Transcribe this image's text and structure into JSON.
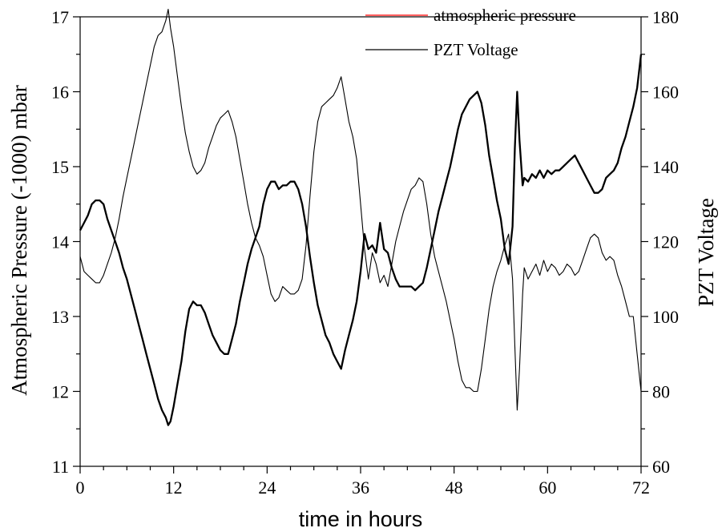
{
  "chart_data": {
    "type": "line",
    "xlabel": "time in hours",
    "ylabel_left": "Atmospheric Pressure (-1000) mbar",
    "ylabel_right": "PZT Voltage",
    "xlim": [
      0,
      72
    ],
    "ylim_left": [
      11,
      17
    ],
    "ylim_right": [
      60,
      180
    ],
    "x_ticks": [
      "0",
      "12",
      "24",
      "36",
      "48",
      "60",
      "72"
    ],
    "y_left_ticks": [
      "11",
      "12",
      "13",
      "14",
      "15",
      "16",
      "17"
    ],
    "y_right_ticks": [
      "60",
      "80",
      "100",
      "120",
      "140",
      "160",
      "180"
    ],
    "grid": false,
    "legend_position": "top-right",
    "series": [
      {
        "name": "atmospheric pressure",
        "axis": "left",
        "legend_color": "#ff0000",
        "line_color": "#000000",
        "line_width": "thin",
        "points": [
          [
            0,
            13.8
          ],
          [
            0.5,
            13.6
          ],
          [
            1,
            13.55
          ],
          [
            1.5,
            13.5
          ],
          [
            2,
            13.45
          ],
          [
            2.5,
            13.45
          ],
          [
            3,
            13.55
          ],
          [
            3.5,
            13.7
          ],
          [
            4,
            13.85
          ],
          [
            4.5,
            14.05
          ],
          [
            5,
            14.3
          ],
          [
            5.5,
            14.6
          ],
          [
            6,
            14.85
          ],
          [
            6.5,
            15.1
          ],
          [
            7,
            15.35
          ],
          [
            7.5,
            15.6
          ],
          [
            8,
            15.85
          ],
          [
            8.5,
            16.1
          ],
          [
            9,
            16.35
          ],
          [
            9.5,
            16.6
          ],
          [
            10,
            16.75
          ],
          [
            10.5,
            16.8
          ],
          [
            11,
            16.95
          ],
          [
            11.3,
            17.1
          ],
          [
            11.6,
            16.85
          ],
          [
            12,
            16.6
          ],
          [
            12.5,
            16.2
          ],
          [
            13,
            15.8
          ],
          [
            13.5,
            15.45
          ],
          [
            14,
            15.2
          ],
          [
            14.5,
            15.0
          ],
          [
            15,
            14.9
          ],
          [
            15.5,
            14.95
          ],
          [
            16,
            15.05
          ],
          [
            16.5,
            15.25
          ],
          [
            17,
            15.4
          ],
          [
            17.5,
            15.55
          ],
          [
            18,
            15.65
          ],
          [
            18.5,
            15.7
          ],
          [
            19,
            15.75
          ],
          [
            19.5,
            15.6
          ],
          [
            20,
            15.4
          ],
          [
            20.5,
            15.1
          ],
          [
            21,
            14.8
          ],
          [
            21.5,
            14.5
          ],
          [
            22,
            14.25
          ],
          [
            22.5,
            14.05
          ],
          [
            23,
            13.95
          ],
          [
            23.5,
            13.8
          ],
          [
            24,
            13.55
          ],
          [
            24.5,
            13.3
          ],
          [
            25,
            13.2
          ],
          [
            25.5,
            13.25
          ],
          [
            26,
            13.4
          ],
          [
            26.5,
            13.35
          ],
          [
            27,
            13.3
          ],
          [
            27.5,
            13.3
          ],
          [
            28,
            13.35
          ],
          [
            28.5,
            13.5
          ],
          [
            29,
            13.95
          ],
          [
            29.5,
            14.6
          ],
          [
            30,
            15.2
          ],
          [
            30.5,
            15.6
          ],
          [
            31,
            15.8
          ],
          [
            31.5,
            15.85
          ],
          [
            32,
            15.9
          ],
          [
            32.5,
            15.95
          ],
          [
            33,
            16.05
          ],
          [
            33.5,
            16.2
          ],
          [
            34,
            15.9
          ],
          [
            34.5,
            15.6
          ],
          [
            35,
            15.4
          ],
          [
            35.5,
            15.1
          ],
          [
            36,
            14.5
          ],
          [
            36.5,
            13.9
          ],
          [
            37,
            13.5
          ],
          [
            37.5,
            13.85
          ],
          [
            38,
            13.7
          ],
          [
            38.5,
            13.45
          ],
          [
            39,
            13.55
          ],
          [
            39.5,
            13.4
          ],
          [
            40,
            13.7
          ],
          [
            40.5,
            14.0
          ],
          [
            41,
            14.2
          ],
          [
            41.5,
            14.4
          ],
          [
            42,
            14.55
          ],
          [
            42.5,
            14.7
          ],
          [
            43,
            14.75
          ],
          [
            43.5,
            14.85
          ],
          [
            44,
            14.8
          ],
          [
            44.5,
            14.5
          ],
          [
            45,
            14.1
          ],
          [
            45.5,
            13.8
          ],
          [
            46,
            13.6
          ],
          [
            46.5,
            13.4
          ],
          [
            47,
            13.2
          ],
          [
            47.5,
            12.95
          ],
          [
            48,
            12.7
          ],
          [
            48.5,
            12.4
          ],
          [
            49,
            12.15
          ],
          [
            49.5,
            12.05
          ],
          [
            50,
            12.05
          ],
          [
            50.5,
            12.0
          ],
          [
            51,
            12.0
          ],
          [
            51.5,
            12.3
          ],
          [
            52,
            12.7
          ],
          [
            52.5,
            13.1
          ],
          [
            53,
            13.4
          ],
          [
            53.5,
            13.6
          ],
          [
            54,
            13.75
          ],
          [
            54.5,
            13.95
          ],
          [
            55,
            14.1
          ],
          [
            55.5,
            13.5
          ],
          [
            55.8,
            12.6
          ],
          [
            56.1,
            11.75
          ],
          [
            56.4,
            12.3
          ],
          [
            56.8,
            13.3
          ],
          [
            57,
            13.65
          ],
          [
            57.5,
            13.5
          ],
          [
            58,
            13.6
          ],
          [
            58.5,
            13.7
          ],
          [
            59,
            13.55
          ],
          [
            59.5,
            13.75
          ],
          [
            60,
            13.6
          ],
          [
            60.5,
            13.7
          ],
          [
            61,
            13.65
          ],
          [
            61.5,
            13.55
          ],
          [
            62,
            13.6
          ],
          [
            62.5,
            13.7
          ],
          [
            63,
            13.65
          ],
          [
            63.5,
            13.55
          ],
          [
            64,
            13.6
          ],
          [
            64.5,
            13.75
          ],
          [
            65,
            13.9
          ],
          [
            65.5,
            14.05
          ],
          [
            66,
            14.1
          ],
          [
            66.5,
            14.05
          ],
          [
            67,
            13.85
          ],
          [
            67.5,
            13.75
          ],
          [
            68,
            13.8
          ],
          [
            68.5,
            13.75
          ],
          [
            69,
            13.55
          ],
          [
            69.5,
            13.4
          ],
          [
            70,
            13.2
          ],
          [
            70.5,
            13.0
          ],
          [
            71,
            13.0
          ],
          [
            71.5,
            12.5
          ],
          [
            72,
            12.0
          ]
        ]
      },
      {
        "name": "PZT Voltage",
        "axis": "right",
        "legend_color": "#000000",
        "line_color": "#000000",
        "line_width": "thick",
        "points": [
          [
            0,
            123
          ],
          [
            0.5,
            125
          ],
          [
            1,
            127
          ],
          [
            1.5,
            130
          ],
          [
            2,
            131
          ],
          [
            2.5,
            131
          ],
          [
            3,
            130
          ],
          [
            3.5,
            126
          ],
          [
            4,
            123
          ],
          [
            4.5,
            120
          ],
          [
            5,
            117
          ],
          [
            5.5,
            113
          ],
          [
            6,
            110
          ],
          [
            6.5,
            106
          ],
          [
            7,
            102
          ],
          [
            7.5,
            98
          ],
          [
            8,
            94
          ],
          [
            8.5,
            90
          ],
          [
            9,
            86
          ],
          [
            9.5,
            82
          ],
          [
            10,
            78
          ],
          [
            10.5,
            75
          ],
          [
            11,
            73
          ],
          [
            11.3,
            71
          ],
          [
            11.6,
            72
          ],
          [
            12,
            76
          ],
          [
            12.5,
            82
          ],
          [
            13,
            88
          ],
          [
            13.5,
            96
          ],
          [
            14,
            102
          ],
          [
            14.5,
            104
          ],
          [
            15,
            103
          ],
          [
            15.5,
            103
          ],
          [
            16,
            101
          ],
          [
            16.5,
            98
          ],
          [
            17,
            95
          ],
          [
            17.5,
            93
          ],
          [
            18,
            91
          ],
          [
            18.5,
            90
          ],
          [
            19,
            90
          ],
          [
            19.5,
            94
          ],
          [
            20,
            98
          ],
          [
            20.5,
            104
          ],
          [
            21,
            109
          ],
          [
            21.5,
            114
          ],
          [
            22,
            118
          ],
          [
            22.5,
            121
          ],
          [
            23,
            124
          ],
          [
            23.5,
            130
          ],
          [
            24,
            134
          ],
          [
            24.5,
            136
          ],
          [
            25,
            136
          ],
          [
            25.5,
            134
          ],
          [
            26,
            135
          ],
          [
            26.5,
            135
          ],
          [
            27,
            136
          ],
          [
            27.5,
            136
          ],
          [
            28,
            134
          ],
          [
            28.5,
            130
          ],
          [
            29,
            124
          ],
          [
            29.5,
            116
          ],
          [
            30,
            109
          ],
          [
            30.5,
            103
          ],
          [
            31,
            99
          ],
          [
            31.5,
            95
          ],
          [
            32,
            93
          ],
          [
            32.5,
            90
          ],
          [
            33,
            88
          ],
          [
            33.5,
            86
          ],
          [
            34,
            91
          ],
          [
            34.5,
            95
          ],
          [
            35,
            99
          ],
          [
            35.5,
            104
          ],
          [
            36,
            112
          ],
          [
            36.5,
            122
          ],
          [
            37,
            118
          ],
          [
            37.5,
            119
          ],
          [
            38,
            117
          ],
          [
            38.5,
            125
          ],
          [
            39,
            118
          ],
          [
            39.5,
            117
          ],
          [
            40,
            113
          ],
          [
            40.5,
            110
          ],
          [
            41,
            108
          ],
          [
            41.5,
            108
          ],
          [
            42,
            108
          ],
          [
            42.5,
            108
          ],
          [
            43,
            107
          ],
          [
            43.5,
            108
          ],
          [
            44,
            109
          ],
          [
            44.5,
            113
          ],
          [
            45,
            118
          ],
          [
            45.5,
            123
          ],
          [
            46,
            128
          ],
          [
            46.5,
            132
          ],
          [
            47,
            136
          ],
          [
            47.5,
            140
          ],
          [
            48,
            145
          ],
          [
            48.5,
            150
          ],
          [
            49,
            154
          ],
          [
            49.5,
            156
          ],
          [
            50,
            158
          ],
          [
            50.5,
            159
          ],
          [
            51,
            160
          ],
          [
            51.5,
            157
          ],
          [
            52,
            151
          ],
          [
            52.5,
            143
          ],
          [
            53,
            137
          ],
          [
            53.5,
            131
          ],
          [
            54,
            126
          ],
          [
            54.5,
            118
          ],
          [
            55,
            114
          ],
          [
            55.5,
            124
          ],
          [
            55.8,
            145
          ],
          [
            56.1,
            160
          ],
          [
            56.4,
            147
          ],
          [
            56.8,
            135
          ],
          [
            57,
            137
          ],
          [
            57.5,
            136
          ],
          [
            58,
            138
          ],
          [
            58.5,
            137
          ],
          [
            59,
            139
          ],
          [
            59.5,
            137
          ],
          [
            60,
            139
          ],
          [
            60.5,
            138
          ],
          [
            61,
            139
          ],
          [
            61.5,
            139
          ],
          [
            62,
            140
          ],
          [
            62.5,
            141
          ],
          [
            63,
            142
          ],
          [
            63.5,
            143
          ],
          [
            64,
            141
          ],
          [
            64.5,
            139
          ],
          [
            65,
            137
          ],
          [
            65.5,
            135
          ],
          [
            66,
            133
          ],
          [
            66.5,
            133
          ],
          [
            67,
            134
          ],
          [
            67.5,
            137
          ],
          [
            68,
            138
          ],
          [
            68.5,
            139
          ],
          [
            69,
            141
          ],
          [
            69.5,
            145
          ],
          [
            70,
            148
          ],
          [
            70.5,
            152
          ],
          [
            71,
            156
          ],
          [
            71.5,
            161
          ],
          [
            72,
            170
          ]
        ]
      }
    ]
  }
}
